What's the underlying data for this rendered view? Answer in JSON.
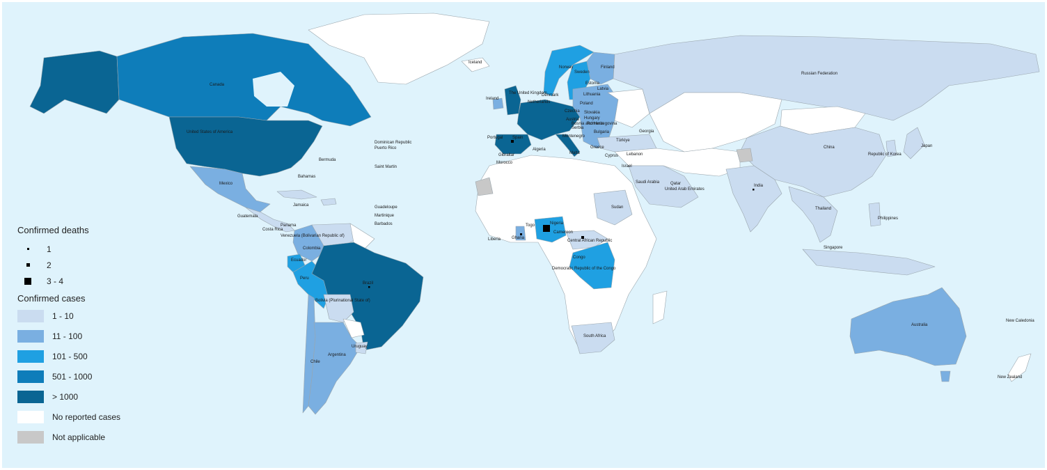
{
  "colors": {
    "ocean": "#dff3fc",
    "no_cases": "#ffffff",
    "not_applicable": "#c8c8c8",
    "c1": "#cadcf0",
    "c2": "#7aafe1",
    "c3": "#1fa0e2",
    "c4": "#0e7dba",
    "c5": "#0a6593",
    "border": "#9aa6ad",
    "death_marker": "#000000"
  },
  "legend": {
    "deaths_title": "Confirmed deaths",
    "deaths": [
      {
        "label": "1",
        "size": "small"
      },
      {
        "label": "2",
        "size": "medium"
      },
      {
        "label": "3 - 4",
        "size": "large"
      }
    ],
    "cases_title": "Confirmed cases",
    "cases": [
      {
        "label": "1 - 10",
        "level": "c1"
      },
      {
        "label": "11 - 100",
        "level": "c2"
      },
      {
        "label": "101 - 500",
        "level": "c3"
      },
      {
        "label": "501 - 1000",
        "level": "c4"
      },
      {
        "label": "> 1000",
        "level": "c5"
      },
      {
        "label": "No reported cases",
        "level": "no_cases"
      },
      {
        "label": "Not applicable",
        "level": "not_applicable"
      }
    ]
  },
  "country_labels": {
    "canada": "Canada",
    "usa": "United States of America",
    "mexico": "Mexico",
    "bermuda": "Bermuda",
    "bahamas": "Bahamas",
    "dominican": "Dominican Republic",
    "puerto_rico": "Puerto Rico",
    "saint_martin": "Saint Martin",
    "guadeloupe": "Guadeloupe",
    "martinique": "Martinique",
    "barbados": "Barbados",
    "jamaica": "Jamaica",
    "guatemala": "Guatemala",
    "costa_rica": "Costa Rica",
    "panama": "Panama",
    "venezuela": "Venezuela (Bolivarian Republic of)",
    "colombia": "Colombia",
    "ecuador": "Ecuador",
    "peru": "Peru",
    "brazil": "Brazil",
    "bolivia": "Bolivia (Plurinational State of)",
    "chile": "Chile",
    "argentina": "Argentina",
    "uruguay": "Uruguay",
    "iceland": "Iceland",
    "ireland": "Ireland",
    "uk": "The United Kingdom",
    "netherlands": "Netherlands",
    "denmark": "Denmark",
    "norway": "Norway",
    "sweden": "Sweden",
    "finland": "Finland",
    "estonia": "Estonia",
    "latvia": "Latvia",
    "lithuania": "Lithuania",
    "poland": "Poland",
    "czechia": "Czechia",
    "slovakia": "Slovakia",
    "austria": "Austria",
    "hungary": "Hungary",
    "romania": "Romania",
    "bulgaria": "Bulgaria",
    "serbia": "Serbia",
    "montenegro": "Montenegro",
    "bosnia": "Bosnia and Herzegovina",
    "portugal": "Portugal",
    "spain": "Spain",
    "gibraltar": "Gibraltar",
    "morocco": "Morocco",
    "algeria": "Algeria",
    "malta": "Malta",
    "greece": "Greece",
    "turkiye": "Türkiye",
    "georgia": "Georgia",
    "cyprus": "Cyprus",
    "lebanon": "Lebanon",
    "israel": "Israel",
    "saudi": "Saudi Arabia",
    "qatar": "Qatar",
    "uae": "United Arab Emirates",
    "russia": "Russian Federation",
    "china": "China",
    "korea": "Republic of Korea",
    "japan": "Japan",
    "india": "India",
    "thailand": "Thailand",
    "philippines": "Philippines",
    "singapore": "Singapore",
    "australia": "Australia",
    "new_caledonia": "New Caledonia",
    "new_zealand": "New Zealand",
    "sudan": "Sudan",
    "nigeria": "Nigeria",
    "ghana": "Ghana",
    "togo": "Togo",
    "liberia": "Liberia",
    "cameroon": "Cameroon",
    "car": "Central African Republic",
    "congo": "Congo",
    "drc": "Democratic Republic of the Congo",
    "south_africa": "South Africa"
  }
}
